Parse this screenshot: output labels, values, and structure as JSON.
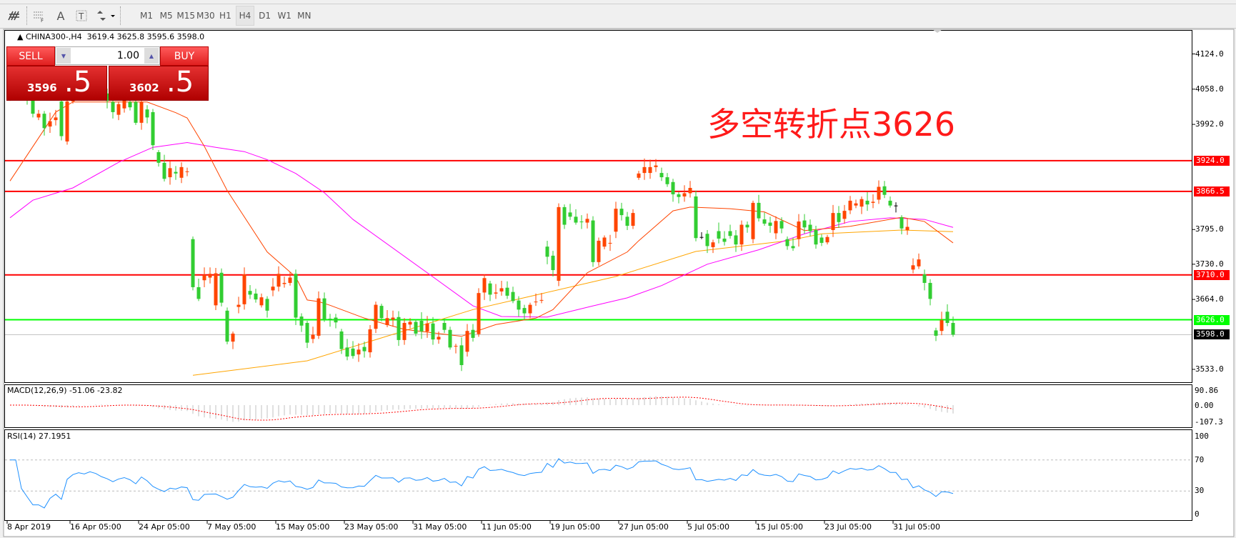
{
  "toolbar": {
    "icons": [
      "elliott-wave-icon",
      "fibonacci-icon",
      "text-icon",
      "text-label-icon",
      "arrows-icon"
    ],
    "timeframes": [
      "M1",
      "M5",
      "M15",
      "M30",
      "H1",
      "H4",
      "D1",
      "W1",
      "MN"
    ],
    "active": "H4"
  },
  "header": {
    "symbol": "CHINA300-,H4",
    "ohlc": "3619.4 3625.8 3595.6 3598.0"
  },
  "trade": {
    "sell": "SELL",
    "buy": "BUY",
    "volume": "1.00",
    "sell_small": "3596",
    "sell_large": ".5",
    "buy_small": "3602",
    "buy_large": ".5"
  },
  "annotation": "多空转折点3626",
  "colors": {
    "up": "#ff4500",
    "down": "#32cd32",
    "ma_fast": "#ff4500",
    "ma_mid": "#ff00ff",
    "ma_slow": "#ffa500",
    "resistance": "#ff0000",
    "pivot": "#00ff00",
    "rsi": "#1e90ff",
    "macd_signal": "#ff0000",
    "macd_hist": "#c0c0c0"
  },
  "macd": {
    "label": "MACD(12,26,9) -51.06 -23.82",
    "ticks": [
      "90.86",
      "0.00",
      "-107.3"
    ]
  },
  "rsi": {
    "label": "RSI(14) 27.1951",
    "ticks": [
      "100",
      "70",
      "30",
      "0"
    ]
  },
  "chart_data": {
    "type": "candlestick",
    "price_ticks": [
      "4124.0",
      "4058.0",
      "3992.0",
      "3795.0",
      "3730.0",
      "3664.0",
      "3533.0"
    ],
    "ylim": [
      3533,
      4124
    ],
    "hlines": [
      {
        "value": 3924.0,
        "label": "3924.0",
        "color": "#ff0000"
      },
      {
        "value": 3866.5,
        "label": "3866.5",
        "color": "#ff0000"
      },
      {
        "value": 3710.0,
        "label": "3710.0",
        "color": "#ff0000"
      },
      {
        "value": 3626.0,
        "label": "3626.0",
        "color": "#00ff00"
      },
      {
        "value": 3598.0,
        "label": "3598.0",
        "color": "#000000",
        "line": "#c0c0c0"
      }
    ],
    "date_labels": [
      [
        "8 Apr 2019",
        0
      ],
      [
        "16 Apr 05:00",
        11
      ],
      [
        "24 Apr 05:00",
        23
      ],
      [
        "7 May 05:00",
        35
      ],
      [
        "15 May 05:00",
        47
      ],
      [
        "23 May 05:00",
        59
      ],
      [
        "31 May 05:00",
        71
      ],
      [
        "11 Jun 05:00",
        83
      ],
      [
        "19 Jun 05:00",
        95
      ],
      [
        "27 Jun 05:00",
        107
      ],
      [
        "5 Jul 05:00",
        119
      ],
      [
        "15 Jul 05:00",
        131
      ],
      [
        "23 Jul 05:00",
        143
      ],
      [
        "31 Jul 05:00",
        155
      ]
    ],
    "candles_open_close": [
      [
        4040,
        4055
      ],
      [
        4055,
        4062
      ],
      [
        4062,
        4048
      ],
      [
        4048,
        4038
      ],
      [
        4038,
        4012
      ],
      [
        4005,
        4012
      ],
      [
        4012,
        3985
      ],
      [
        3988,
        3998
      ],
      [
        4000,
        4005
      ],
      [
        4035,
        3970
      ],
      [
        3960,
        4035
      ],
      [
        4035,
        4060
      ],
      [
        4060,
        4072
      ],
      [
        4072,
        4065
      ],
      [
        4065,
        4080
      ],
      [
        4080,
        4070
      ],
      [
        4070,
        4050
      ],
      [
        4050,
        4036
      ],
      [
        4034,
        4015
      ],
      [
        4010,
        4030
      ],
      [
        4022,
        4038
      ],
      [
        4034,
        4024
      ],
      [
        4034,
        3995
      ],
      [
        3995,
        4034
      ],
      [
        4020,
        4005
      ],
      [
        4015,
        3953
      ],
      [
        3940,
        3920
      ],
      [
        3920,
        3890
      ],
      [
        3893,
        3910
      ],
      [
        3903,
        3900
      ],
      [
        3892,
        3912
      ],
      [
        3903,
        3904
      ],
      [
        3777,
        3687
      ],
      [
        3687,
        3665
      ],
      [
        3700,
        3710
      ],
      [
        3705,
        3712
      ],
      [
        3653,
        3713
      ],
      [
        3714,
        3658
      ],
      [
        3643,
        3585
      ],
      [
        3585,
        3600
      ],
      [
        3650,
        3654
      ],
      [
        3655,
        3711
      ],
      [
        3680,
        3673
      ],
      [
        3675,
        3664
      ],
      [
        3653,
        3668
      ],
      [
        3665,
        3643
      ],
      [
        3681,
        3688
      ],
      [
        3688,
        3712
      ],
      [
        3693,
        3695
      ],
      [
        3695,
        3705
      ],
      [
        3712,
        3630
      ],
      [
        3632,
        3615
      ],
      [
        3620,
        3583
      ],
      [
        3590,
        3598
      ],
      [
        3596,
        3666
      ],
      [
        3666,
        3626
      ],
      [
        3628,
        3626
      ],
      [
        3630,
        3621
      ],
      [
        3604,
        3571
      ],
      [
        3574,
        3557
      ],
      [
        3572,
        3558
      ],
      [
        3561,
        3570
      ],
      [
        3575,
        3567
      ],
      [
        3565,
        3608
      ],
      [
        3609,
        3654
      ],
      [
        3652,
        3629
      ],
      [
        3616,
        3629
      ],
      [
        3626,
        3630
      ],
      [
        3631,
        3588
      ],
      [
        3588,
        3620
      ],
      [
        3617,
        3622
      ],
      [
        3622,
        3600
      ],
      [
        3624,
        3604
      ],
      [
        3604,
        3619
      ],
      [
        3619,
        3589
      ],
      [
        3589,
        3594
      ],
      [
        3620,
        3607
      ],
      [
        3607,
        3574
      ],
      [
        3576,
        3577
      ],
      [
        3578,
        3541
      ],
      [
        3566,
        3605
      ],
      [
        3607,
        3592
      ],
      [
        3599,
        3676
      ],
      [
        3677,
        3704
      ],
      [
        3694,
        3673
      ],
      [
        3675,
        3677
      ],
      [
        3679,
        3685
      ],
      [
        3686,
        3671
      ],
      [
        3678,
        3661
      ],
      [
        3662,
        3645
      ],
      [
        3648,
        3638
      ],
      [
        3638,
        3654
      ],
      [
        3659,
        3660
      ],
      [
        3662,
        3663
      ],
      [
        3763,
        3744
      ],
      [
        3746,
        3719
      ],
      [
        3699,
        3837
      ],
      [
        3837,
        3804
      ],
      [
        3827,
        3819
      ],
      [
        3819,
        3808
      ],
      [
        3810,
        3809
      ],
      [
        3808,
        3815
      ],
      [
        3812,
        3734
      ],
      [
        3734,
        3774
      ],
      [
        3763,
        3780
      ],
      [
        3769,
        3770
      ],
      [
        3791,
        3834
      ],
      [
        3834,
        3822
      ],
      [
        3819,
        3802
      ],
      [
        3802,
        3826
      ],
      [
        3892,
        3900
      ],
      [
        3901,
        3912
      ],
      [
        3901,
        3912
      ],
      [
        3912,
        3915
      ],
      [
        3901,
        3893
      ],
      [
        3893,
        3880
      ],
      [
        3884,
        3861
      ],
      [
        3861,
        3856
      ],
      [
        3857,
        3863
      ],
      [
        3863,
        3873
      ],
      [
        3857,
        3779
      ],
      [
        3781,
        3781
      ],
      [
        3787,
        3764
      ],
      [
        3762,
        3771
      ],
      [
        3792,
        3778
      ],
      [
        3778,
        3772
      ],
      [
        3792,
        3783
      ],
      [
        3784,
        3767
      ],
      [
        3767,
        3804
      ],
      [
        3804,
        3799
      ],
      [
        3777,
        3845
      ],
      [
        3845,
        3816
      ],
      [
        3814,
        3806
      ],
      [
        3808,
        3802
      ],
      [
        3788,
        3811
      ],
      [
        3811,
        3797
      ],
      [
        3777,
        3764
      ],
      [
        3764,
        3760
      ],
      [
        3777,
        3810
      ],
      [
        3812,
        3799
      ],
      [
        3804,
        3792
      ],
      [
        3794,
        3767
      ],
      [
        3780,
        3770
      ],
      [
        3771,
        3781
      ],
      [
        3794,
        3826
      ],
      [
        3826,
        3809
      ],
      [
        3815,
        3830
      ],
      [
        3831,
        3849
      ],
      [
        3840,
        3844
      ],
      [
        3838,
        3852
      ],
      [
        3849,
        3842
      ],
      [
        3845,
        3847
      ],
      [
        3851,
        3875
      ],
      [
        3876,
        3860
      ],
      [
        3849,
        3840
      ],
      [
        3840,
        3840
      ],
      [
        3818,
        3797
      ],
      [
        3794,
        3800
      ],
      [
        3720,
        3728
      ],
      [
        3726,
        3739
      ],
      [
        3711,
        3695
      ],
      [
        3695,
        3665
      ],
      [
        3606,
        3596
      ],
      [
        3605,
        3625
      ],
      [
        3641,
        3620
      ],
      [
        3620,
        3598
      ]
    ],
    "ma_fast": [
      [
        0,
        3886
      ],
      [
        8,
        4015
      ],
      [
        11,
        4034
      ],
      [
        24,
        4034
      ],
      [
        29,
        4014
      ],
      [
        31,
        4004
      ],
      [
        34,
        3951
      ],
      [
        38,
        3868
      ],
      [
        45,
        3753
      ],
      [
        50,
        3706
      ],
      [
        52,
        3663
      ],
      [
        54,
        3660
      ],
      [
        56,
        3653
      ],
      [
        62,
        3629
      ],
      [
        69,
        3608
      ],
      [
        79,
        3595
      ],
      [
        85,
        3617
      ],
      [
        92,
        3629
      ],
      [
        95,
        3645
      ],
      [
        101,
        3714
      ],
      [
        108,
        3753
      ],
      [
        110,
        3774
      ],
      [
        116,
        3830
      ],
      [
        119,
        3837
      ],
      [
        126,
        3834
      ],
      [
        132,
        3828
      ],
      [
        139,
        3793
      ],
      [
        147,
        3801
      ],
      [
        156,
        3818
      ],
      [
        160,
        3810
      ],
      [
        165,
        3770
      ]
    ],
    "ma_mid": [
      [
        0,
        3817
      ],
      [
        4,
        3850
      ],
      [
        11,
        3873
      ],
      [
        19,
        3921
      ],
      [
        25,
        3949
      ],
      [
        31,
        3958
      ],
      [
        36,
        3949
      ],
      [
        41,
        3941
      ],
      [
        45,
        3926
      ],
      [
        50,
        3900
      ],
      [
        55,
        3864
      ],
      [
        60,
        3814
      ],
      [
        73,
        3714
      ],
      [
        81,
        3652
      ],
      [
        86,
        3632
      ],
      [
        94,
        3631
      ],
      [
        102,
        3652
      ],
      [
        108,
        3667
      ],
      [
        114,
        3690
      ],
      [
        122,
        3730
      ],
      [
        131,
        3757
      ],
      [
        139,
        3787
      ],
      [
        147,
        3810
      ],
      [
        154,
        3817
      ],
      [
        160,
        3814
      ],
      [
        165,
        3799
      ]
    ],
    "ma_slow": [
      [
        32,
        3522
      ],
      [
        52,
        3549
      ],
      [
        81,
        3645
      ],
      [
        106,
        3707
      ],
      [
        120,
        3754
      ],
      [
        136,
        3774
      ],
      [
        142,
        3787
      ],
      [
        156,
        3794
      ],
      [
        165,
        3791
      ]
    ]
  }
}
